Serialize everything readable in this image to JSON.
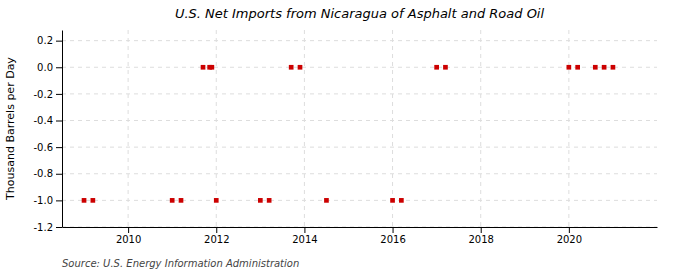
{
  "chart_data": {
    "type": "scatter",
    "title": "U.S. Net Imports from Nicaragua of Asphalt and Road Oil",
    "ylabel": "Thousand Barrels per Day",
    "source": "Source: U.S. Energy Information Administration",
    "x": [
      2009.0,
      2009.2,
      2011.0,
      2011.2,
      2011.7,
      2011.85,
      2011.9,
      2012.0,
      2013.0,
      2013.2,
      2013.7,
      2013.9,
      2014.5,
      2016.0,
      2016.2,
      2017.0,
      2017.2,
      2020.0,
      2020.2,
      2020.6,
      2020.8,
      2021.0
    ],
    "values": [
      -1.0,
      -1.0,
      -1.0,
      -1.0,
      0.0,
      0.0,
      0.0,
      -1.0,
      -1.0,
      -1.0,
      0.0,
      0.0,
      -1.0,
      -1.0,
      -1.0,
      0.0,
      0.0,
      0.0,
      0.0,
      0.0,
      0.0,
      0.0
    ],
    "color": "#cc0000",
    "marker": "square",
    "xlim": [
      2008.5,
      2022.0
    ],
    "ylim": [
      -1.2,
      0.28
    ],
    "xticks": [
      2010,
      2012,
      2014,
      2016,
      2018,
      2020
    ],
    "yticks": [
      0.2,
      {
        "value": 0.0,
        "label": "0.0"
      },
      -0.2,
      -0.4,
      -0.6,
      -0.8,
      {
        "value": -1.0,
        "label": "-1.0"
      },
      -1.2
    ],
    "grid": true
  }
}
